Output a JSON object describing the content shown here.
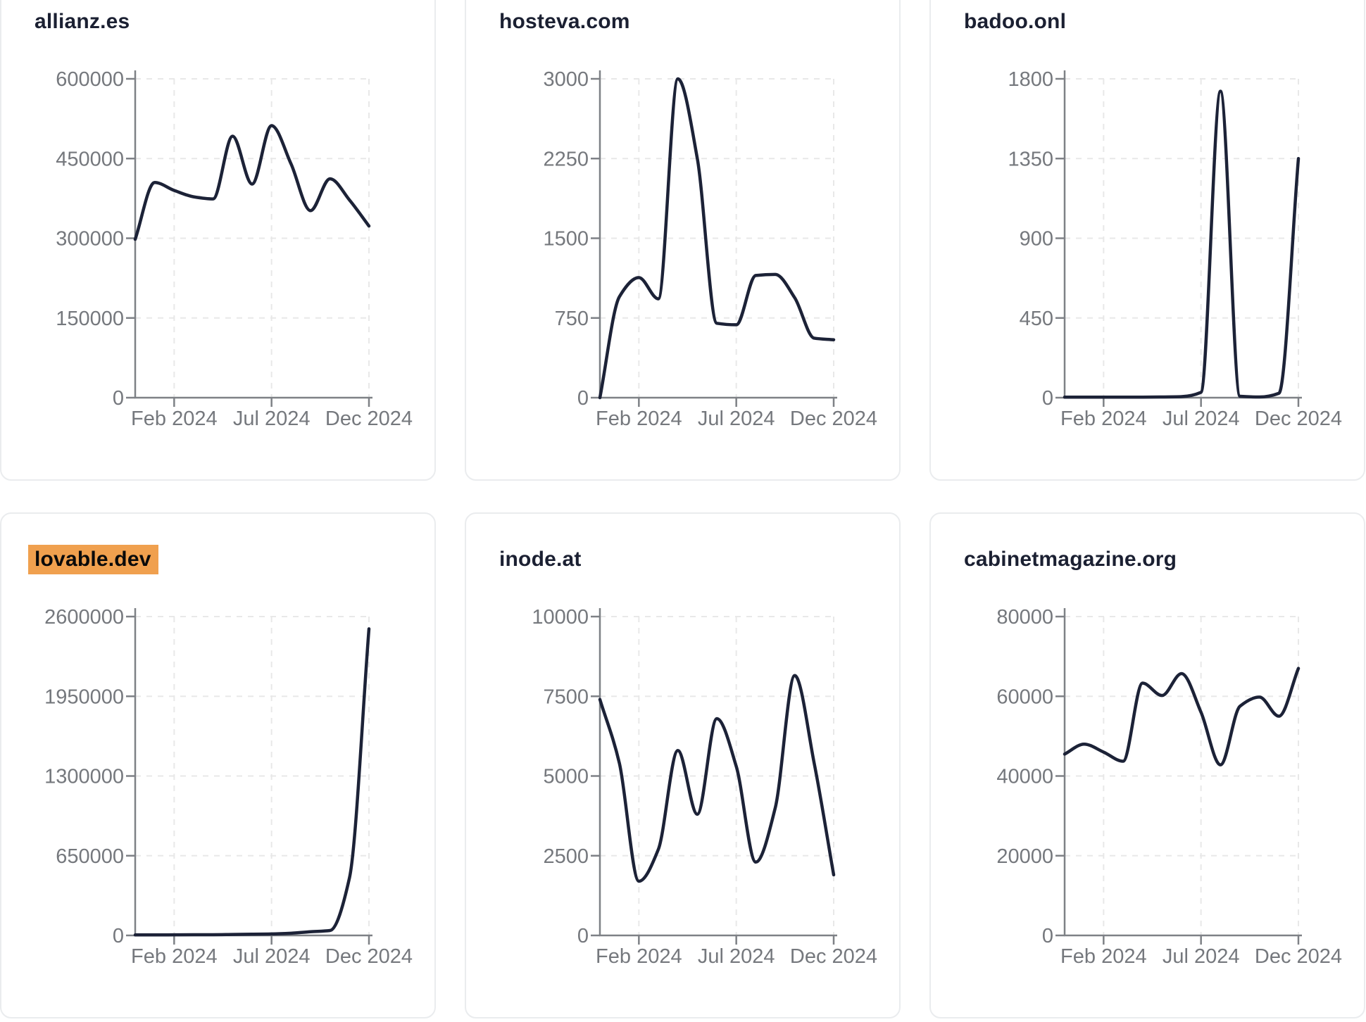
{
  "page": {
    "x_axis_tick_labels": [
      "Feb 2024",
      "Jul 2024",
      "Dec 2024"
    ],
    "x_months": [
      "Dec 2023",
      "Jan 2024",
      "Feb 2024",
      "Mar 2024",
      "Apr 2024",
      "May 2024",
      "Jun 2024",
      "Jul 2024",
      "Aug 2024",
      "Sep 2024",
      "Oct 2024",
      "Nov 2024",
      "Dec 2024"
    ]
  },
  "colors": {
    "line": "#1c2237",
    "title": "#1b2032",
    "tick_label": "#75787d",
    "axis": "#7e8186",
    "grid": "#e8e8e8",
    "card_border": "#eaecee",
    "card_bg": "#ffffff",
    "page_bg": "#ffffff",
    "highlight_bg": "#f0a04e",
    "highlight_text": "#0a0a0a"
  },
  "chart_data": [
    {
      "type": "line",
      "title": "allianz.es",
      "highlighted": false,
      "ylim": [
        0,
        600000
      ],
      "y_tick_labels": [
        "600000",
        "450000",
        "300000",
        "150000",
        "0"
      ],
      "x_tick_labels": [
        "Feb 2024",
        "Jul 2024",
        "Dec 2024"
      ],
      "x": [
        "Dec 2023",
        "Jan 2024",
        "Feb 2024",
        "Mar 2024",
        "Apr 2024",
        "May 2024",
        "Jun 2024",
        "Jul 2024",
        "Aug 2024",
        "Sep 2024",
        "Oct 2024",
        "Nov 2024",
        "Dec 2024"
      ],
      "values": [
        298000,
        405000,
        390000,
        378000,
        374000,
        492000,
        402000,
        512000,
        440000,
        352000,
        412000,
        372000,
        323000
      ]
    },
    {
      "type": "line",
      "title": "hosteva.com",
      "highlighted": false,
      "ylim": [
        0,
        3000
      ],
      "y_tick_labels": [
        "3000",
        "2250",
        "1500",
        "750",
        "0"
      ],
      "x_tick_labels": [
        "Feb 2024",
        "Jul 2024",
        "Dec 2024"
      ],
      "x": [
        "Dec 2023",
        "Jan 2024",
        "Feb 2024",
        "Mar 2024",
        "Apr 2024",
        "May 2024",
        "Jun 2024",
        "Jul 2024",
        "Aug 2024",
        "Sep 2024",
        "Oct 2024",
        "Nov 2024",
        "Dec 2024"
      ],
      "values": [
        0,
        950,
        1130,
        930,
        3000,
        2250,
        700,
        686,
        1150,
        1160,
        940,
        560,
        545
      ]
    },
    {
      "type": "line",
      "title": "badoo.onl",
      "highlighted": false,
      "ylim": [
        0,
        1800
      ],
      "y_tick_labels": [
        "1800",
        "1350",
        "900",
        "450",
        "0"
      ],
      "x_tick_labels": [
        "Feb 2024",
        "Jul 2024",
        "Dec 2024"
      ],
      "x": [
        "Dec 2023",
        "Jan 2024",
        "Feb 2024",
        "Mar 2024",
        "Apr 2024",
        "May 2024",
        "Jun 2024",
        "Jul 2024",
        "Aug 2024",
        "Sep 2024",
        "Oct 2024",
        "Nov 2024",
        "Dec 2024"
      ],
      "values": [
        3,
        3,
        3,
        3,
        3,
        4,
        6,
        30,
        1730,
        8,
        4,
        25,
        1350
      ]
    },
    {
      "type": "line",
      "title": "lovable.dev",
      "highlighted": true,
      "ylim": [
        0,
        2600000
      ],
      "y_tick_labels": [
        "2600000",
        "1950000",
        "1300000",
        "650000",
        "0"
      ],
      "x_tick_labels": [
        "Feb 2024",
        "Jul 2024",
        "Dec 2024"
      ],
      "x": [
        "Dec 2023",
        "Jan 2024",
        "Feb 2024",
        "Mar 2024",
        "Apr 2024",
        "May 2024",
        "Jun 2024",
        "Jul 2024",
        "Aug 2024",
        "Sep 2024",
        "Oct 2024",
        "Nov 2024",
        "Dec 2024"
      ],
      "values": [
        4000,
        4000,
        5000,
        6000,
        6000,
        8000,
        10000,
        12000,
        18000,
        30000,
        40000,
        470000,
        2500000
      ]
    },
    {
      "type": "line",
      "title": "inode.at",
      "highlighted": false,
      "ylim": [
        0,
        10000
      ],
      "y_tick_labels": [
        "10000",
        "7500",
        "5000",
        "2500",
        "0"
      ],
      "x_tick_labels": [
        "Feb 2024",
        "Jul 2024",
        "Dec 2024"
      ],
      "x": [
        "Dec 2023",
        "Jan 2024",
        "Feb 2024",
        "Mar 2024",
        "Apr 2024",
        "May 2024",
        "Jun 2024",
        "Jul 2024",
        "Aug 2024",
        "Sep 2024",
        "Oct 2024",
        "Nov 2024",
        "Dec 2024"
      ],
      "values": [
        7400,
        5400,
        1700,
        2700,
        5800,
        3800,
        6800,
        5300,
        2300,
        4000,
        8150,
        5400,
        1900
      ]
    },
    {
      "type": "line",
      "title": "cabinetmagazine.org",
      "highlighted": false,
      "ylim": [
        0,
        80000
      ],
      "y_tick_labels": [
        "80000",
        "60000",
        "40000",
        "20000",
        "0"
      ],
      "x_tick_labels": [
        "Feb 2024",
        "Jul 2024",
        "Dec 2024"
      ],
      "x": [
        "Dec 2023",
        "Jan 2024",
        "Feb 2024",
        "Mar 2024",
        "Apr 2024",
        "May 2024",
        "Jun 2024",
        "Jul 2024",
        "Aug 2024",
        "Sep 2024",
        "Oct 2024",
        "Nov 2024",
        "Dec 2024"
      ],
      "values": [
        45500,
        48000,
        46000,
        43700,
        63300,
        60200,
        65700,
        56000,
        42800,
        57500,
        59800,
        55000,
        67000
      ]
    }
  ]
}
